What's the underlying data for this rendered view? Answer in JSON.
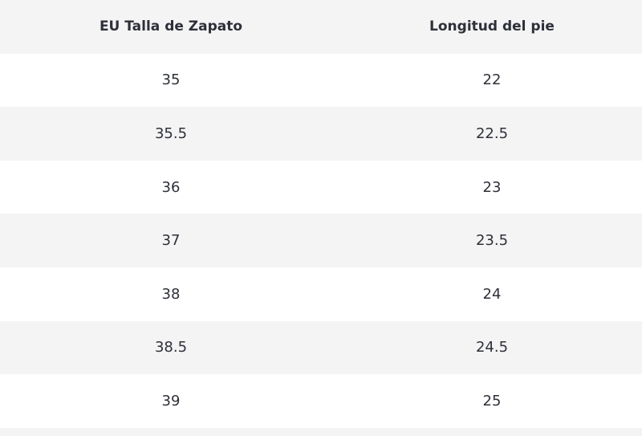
{
  "table": {
    "header": [
      "EU Talla de Zapato",
      "Longitud del pie"
    ],
    "rows": [
      [
        "35",
        "22"
      ],
      [
        "35.5",
        "22.5"
      ],
      [
        "36",
        "23"
      ],
      [
        "37",
        "23.5"
      ],
      [
        "38",
        "24"
      ],
      [
        "38.5",
        "24.5"
      ],
      [
        "39",
        "25"
      ]
    ]
  }
}
